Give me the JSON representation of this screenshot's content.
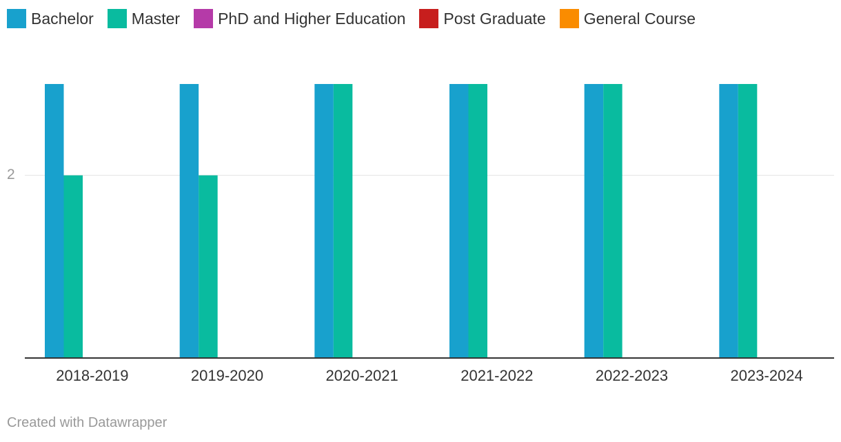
{
  "chart_data": {
    "type": "bar",
    "categories": [
      "2018-2019",
      "2019-2020",
      "2020-2021",
      "2021-2022",
      "2022-2023",
      "2023-2024"
    ],
    "series": [
      {
        "name": "Bachelor",
        "color": "#18a1cd",
        "values": [
          3,
          3,
          3,
          3,
          3,
          3
        ]
      },
      {
        "name": "Master",
        "color": "#09bb9f",
        "values": [
          2,
          2,
          3,
          3,
          3,
          3
        ]
      },
      {
        "name": "PhD and Higher Education",
        "color": "#b53aa8",
        "values": [
          0,
          0,
          0,
          0,
          0,
          0
        ]
      },
      {
        "name": "Post Graduate",
        "color": "#c71e1d",
        "values": [
          0,
          0,
          0,
          0,
          0,
          0
        ]
      },
      {
        "name": "General Course",
        "color": "#fa8c00",
        "values": [
          0,
          0,
          0,
          0,
          0,
          0
        ]
      }
    ],
    "y_ticks": [
      "2"
    ],
    "ylim": [
      0,
      3
    ],
    "legend_position": "top-left",
    "grid": true
  },
  "credit": "Created with Datawrapper"
}
